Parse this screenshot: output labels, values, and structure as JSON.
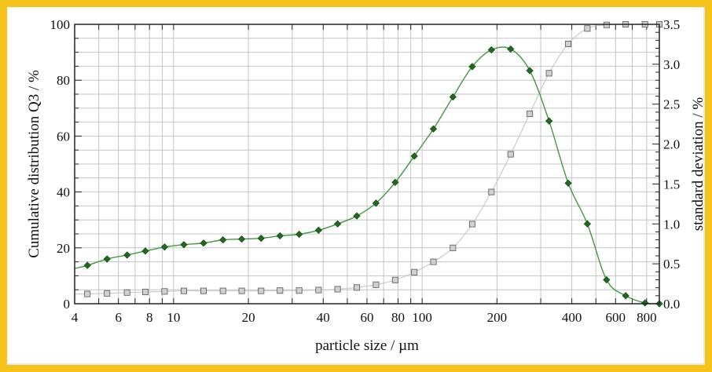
{
  "chart_data": {
    "type": "line",
    "title": "",
    "xlabel": "particle size / µm",
    "ylabel_left": "Cumulative distribution Q3 / %",
    "ylabel_right": "standard deviation / %",
    "x_scale": "log",
    "xlim": [
      4,
      900
    ],
    "ylim_left": [
      0,
      100
    ],
    "ylim_right": [
      0,
      3.5
    ],
    "grid": true,
    "x_ticks": [
      {
        "value": 4,
        "label": "4"
      },
      {
        "value": 6,
        "label": "6"
      },
      {
        "value": 8,
        "label": "8"
      },
      {
        "value": 10,
        "label": "10"
      },
      {
        "value": 20,
        "label": "20"
      },
      {
        "value": 40,
        "label": "40"
      },
      {
        "value": 60,
        "label": "60"
      },
      {
        "value": 80,
        "label": "80"
      },
      {
        "value": 100,
        "label": "100"
      },
      {
        "value": 200,
        "label": "200"
      },
      {
        "value": 400,
        "label": "400"
      },
      {
        "value": 600,
        "label": "600"
      },
      {
        "value": 800,
        "label": "800"
      }
    ],
    "y_ticks_left": [
      {
        "value": 0,
        "label": "0"
      },
      {
        "value": 20,
        "label": "20"
      },
      {
        "value": 40,
        "label": "40"
      },
      {
        "value": 60,
        "label": "60"
      },
      {
        "value": 80,
        "label": "80"
      },
      {
        "value": 100,
        "label": "100"
      }
    ],
    "y_ticks_right": [
      {
        "value": 0,
        "label": "0.0"
      },
      {
        "value": 0.5,
        "label": "0.5"
      },
      {
        "value": 1.0,
        "label": "1.0"
      },
      {
        "value": 1.5,
        "label": "1.5"
      },
      {
        "value": 2.0,
        "label": "2.0"
      },
      {
        "value": 2.5,
        "label": "2.5"
      },
      {
        "value": 3.0,
        "label": "3.0"
      },
      {
        "value": 3.5,
        "label": "3.5"
      }
    ],
    "series": [
      {
        "axis": "right",
        "marker": "diamond",
        "color": "#1e6b1e",
        "line_color": "#3f9a3f",
        "x": [
          4.5,
          5.4,
          6.5,
          7.7,
          9.2,
          11,
          13.2,
          15.8,
          18.8,
          22.5,
          26.8,
          32,
          38.3,
          45.7,
          54.6,
          65.2,
          77.9,
          93,
          111,
          133,
          159,
          190,
          227,
          271,
          324,
          387,
          462,
          552,
          659,
          788,
          900
        ],
        "values": [
          0.48,
          0.56,
          0.61,
          0.66,
          0.71,
          0.74,
          0.76,
          0.8,
          0.81,
          0.82,
          0.85,
          0.87,
          0.92,
          1.0,
          1.1,
          1.26,
          1.52,
          1.85,
          2.19,
          2.59,
          2.97,
          3.18,
          3.19,
          2.92,
          2.29,
          1.51,
          1.0,
          0.3,
          0.1,
          0.01,
          0.0
        ]
      },
      {
        "axis": "left",
        "marker": "square",
        "color": "#9a9a9a",
        "line_color": "#c8c8c8",
        "x": [
          4.5,
          5.4,
          6.5,
          7.7,
          9.2,
          11,
          13.2,
          15.8,
          18.8,
          22.5,
          26.8,
          32,
          38.3,
          45.7,
          54.6,
          65.2,
          77.9,
          93,
          111,
          133,
          159,
          190,
          227,
          271,
          324,
          387,
          462,
          552,
          659,
          788,
          900
        ],
        "values": [
          3.5,
          3.7,
          4.0,
          4.2,
          4.4,
          4.6,
          4.6,
          4.6,
          4.6,
          4.6,
          4.7,
          4.7,
          4.9,
          5.2,
          5.8,
          6.8,
          8.5,
          11.3,
          15.0,
          20.0,
          28.5,
          40.0,
          53.5,
          68.0,
          82.5,
          93.0,
          98.5,
          99.8,
          100.0,
          100.0,
          100.0
        ]
      }
    ]
  }
}
